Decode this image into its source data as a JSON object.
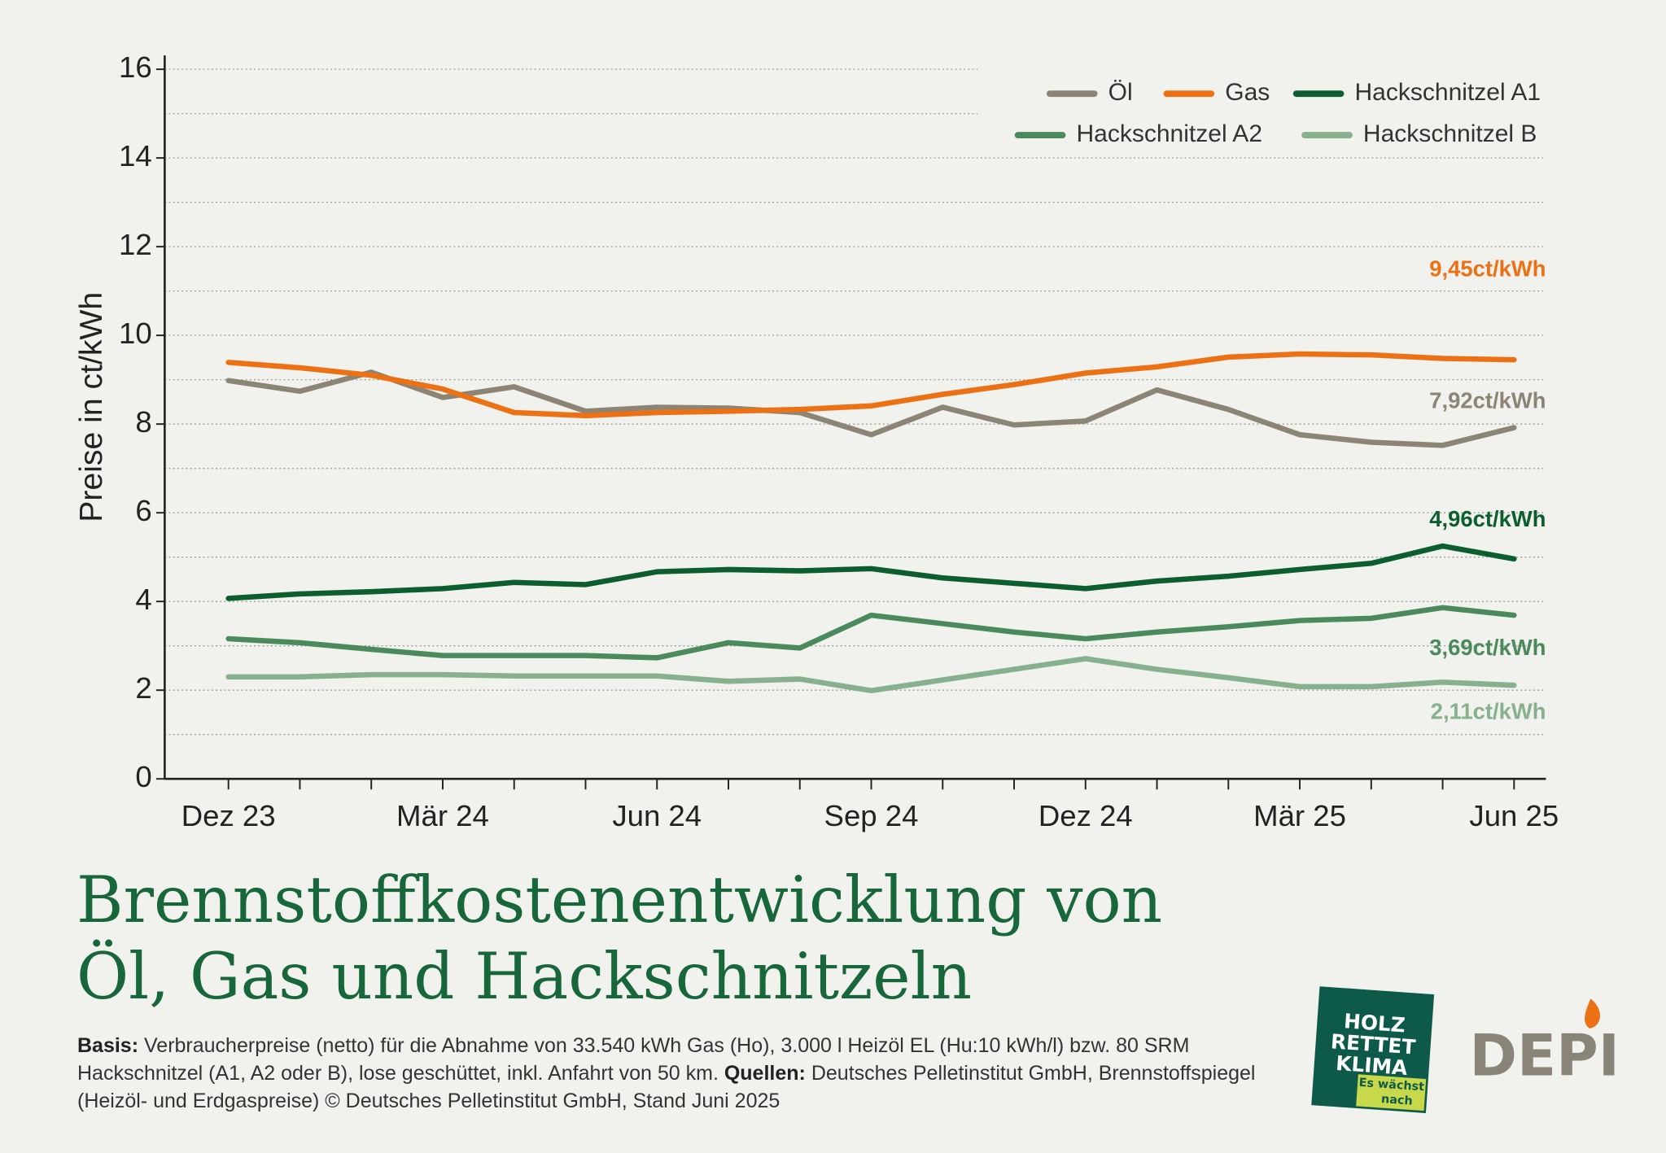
{
  "chart_data": {
    "type": "line",
    "title": [
      "Brennstoffkostenentwicklung von",
      "Öl, Gas und Hackschnitzeln"
    ],
    "y_label": "Preise in ct/kWh",
    "categories": [
      "Dez 23",
      null,
      null,
      "Mär 24",
      null,
      null,
      "Jun 24",
      null,
      null,
      "Sep 24",
      null,
      null,
      "Dez 24",
      null,
      null,
      "Mär 25",
      null,
      null,
      "Jun 25"
    ],
    "ylim": [
      0,
      16
    ],
    "yticks": [
      0,
      2,
      4,
      6,
      8,
      10,
      12,
      14,
      16
    ],
    "yminorticks": [
      1,
      3,
      5,
      7,
      9,
      11,
      13,
      15
    ],
    "grid": true,
    "legend": "top-right",
    "series": [
      {
        "name": "Öl",
        "color": "#8c8475",
        "values": [
          8.98,
          8.74,
          9.17,
          8.6,
          8.84,
          8.29,
          8.38,
          8.36,
          8.26,
          7.76,
          8.38,
          7.98,
          8.07,
          8.77,
          8.33,
          7.76,
          7.59,
          7.52,
          7.92
        ],
        "value_labels": [
          null,
          null,
          null,
          null,
          null,
          null,
          null,
          null,
          null,
          null,
          null,
          null,
          null,
          null,
          null,
          null,
          null,
          null,
          "7,92ct/kWh"
        ]
      },
      {
        "name": "Gas",
        "color": "#ec7014",
        "values": [
          9.39,
          9.27,
          9.1,
          8.79,
          8.26,
          8.19,
          8.26,
          8.29,
          8.33,
          8.41,
          8.67,
          8.89,
          9.15,
          9.29,
          9.51,
          9.58,
          9.56,
          9.48,
          9.45
        ],
        "value_labels": [
          null,
          null,
          null,
          null,
          null,
          null,
          null,
          null,
          null,
          null,
          null,
          null,
          null,
          null,
          null,
          null,
          null,
          null,
          "9,45ct/kWh"
        ]
      },
      {
        "name": "Hackschnitzel A1",
        "color": "#0d5e2e",
        "values": [
          4.07,
          4.17,
          4.22,
          4.29,
          4.43,
          4.38,
          4.67,
          4.72,
          4.69,
          4.74,
          4.53,
          4.41,
          4.29,
          4.46,
          4.57,
          4.72,
          4.86,
          5.25,
          4.96
        ],
        "value_labels": [
          null,
          null,
          null,
          null,
          null,
          null,
          null,
          null,
          null,
          null,
          null,
          null,
          null,
          null,
          null,
          null,
          null,
          null,
          "4,96ct/kWh"
        ]
      },
      {
        "name": "Hackschnitzel A2",
        "color": "#4a8a5c",
        "values": [
          3.16,
          3.07,
          2.92,
          2.78,
          2.78,
          2.78,
          2.73,
          3.07,
          2.95,
          3.69,
          3.5,
          3.31,
          3.16,
          3.31,
          3.43,
          3.57,
          3.62,
          3.86,
          3.69
        ],
        "value_labels": [
          null,
          null,
          null,
          null,
          null,
          null,
          null,
          null,
          null,
          null,
          null,
          null,
          null,
          null,
          null,
          null,
          null,
          null,
          "3,69ct/kWh"
        ]
      },
      {
        "name": "Hackschnitzel B",
        "color": "#86b08e",
        "values": [
          2.3,
          2.3,
          2.35,
          2.35,
          2.32,
          2.32,
          2.32,
          2.2,
          2.25,
          1.99,
          2.23,
          2.47,
          2.71,
          2.47,
          2.28,
          2.08,
          2.08,
          2.18,
          2.11
        ],
        "value_labels": [
          null,
          null,
          null,
          null,
          null,
          null,
          null,
          null,
          null,
          null,
          null,
          null,
          null,
          null,
          null,
          null,
          null,
          null,
          "2,11ct/kWh"
        ]
      }
    ]
  },
  "footer": {
    "basis_label": "Basis:",
    "basis_text": "Verbraucherpreise (netto) für die Abnahme von 33.540 kWh Gas (Ho), 3.000 l Heizöl EL (Hu:10 kWh/l) bzw. 80 SRM Hackschnitzel (A1, A2 oder B), lose geschüttet, inkl. Anfahrt von 50 km.",
    "sources_label": "Quellen:",
    "sources_text": "Deutsches Pelletinstitut GmbH, Brennstoffspiegel (Heizöl- und Erdgaspreise) © Deutsches Pelletinstitut GmbH, Stand Juni 2025"
  },
  "logos": {
    "holz": [
      "HOLZ",
      "RETTET",
      "KLIMA"
    ],
    "tagline": [
      "Es wächst",
      "nach"
    ],
    "depi": "DEPI"
  }
}
